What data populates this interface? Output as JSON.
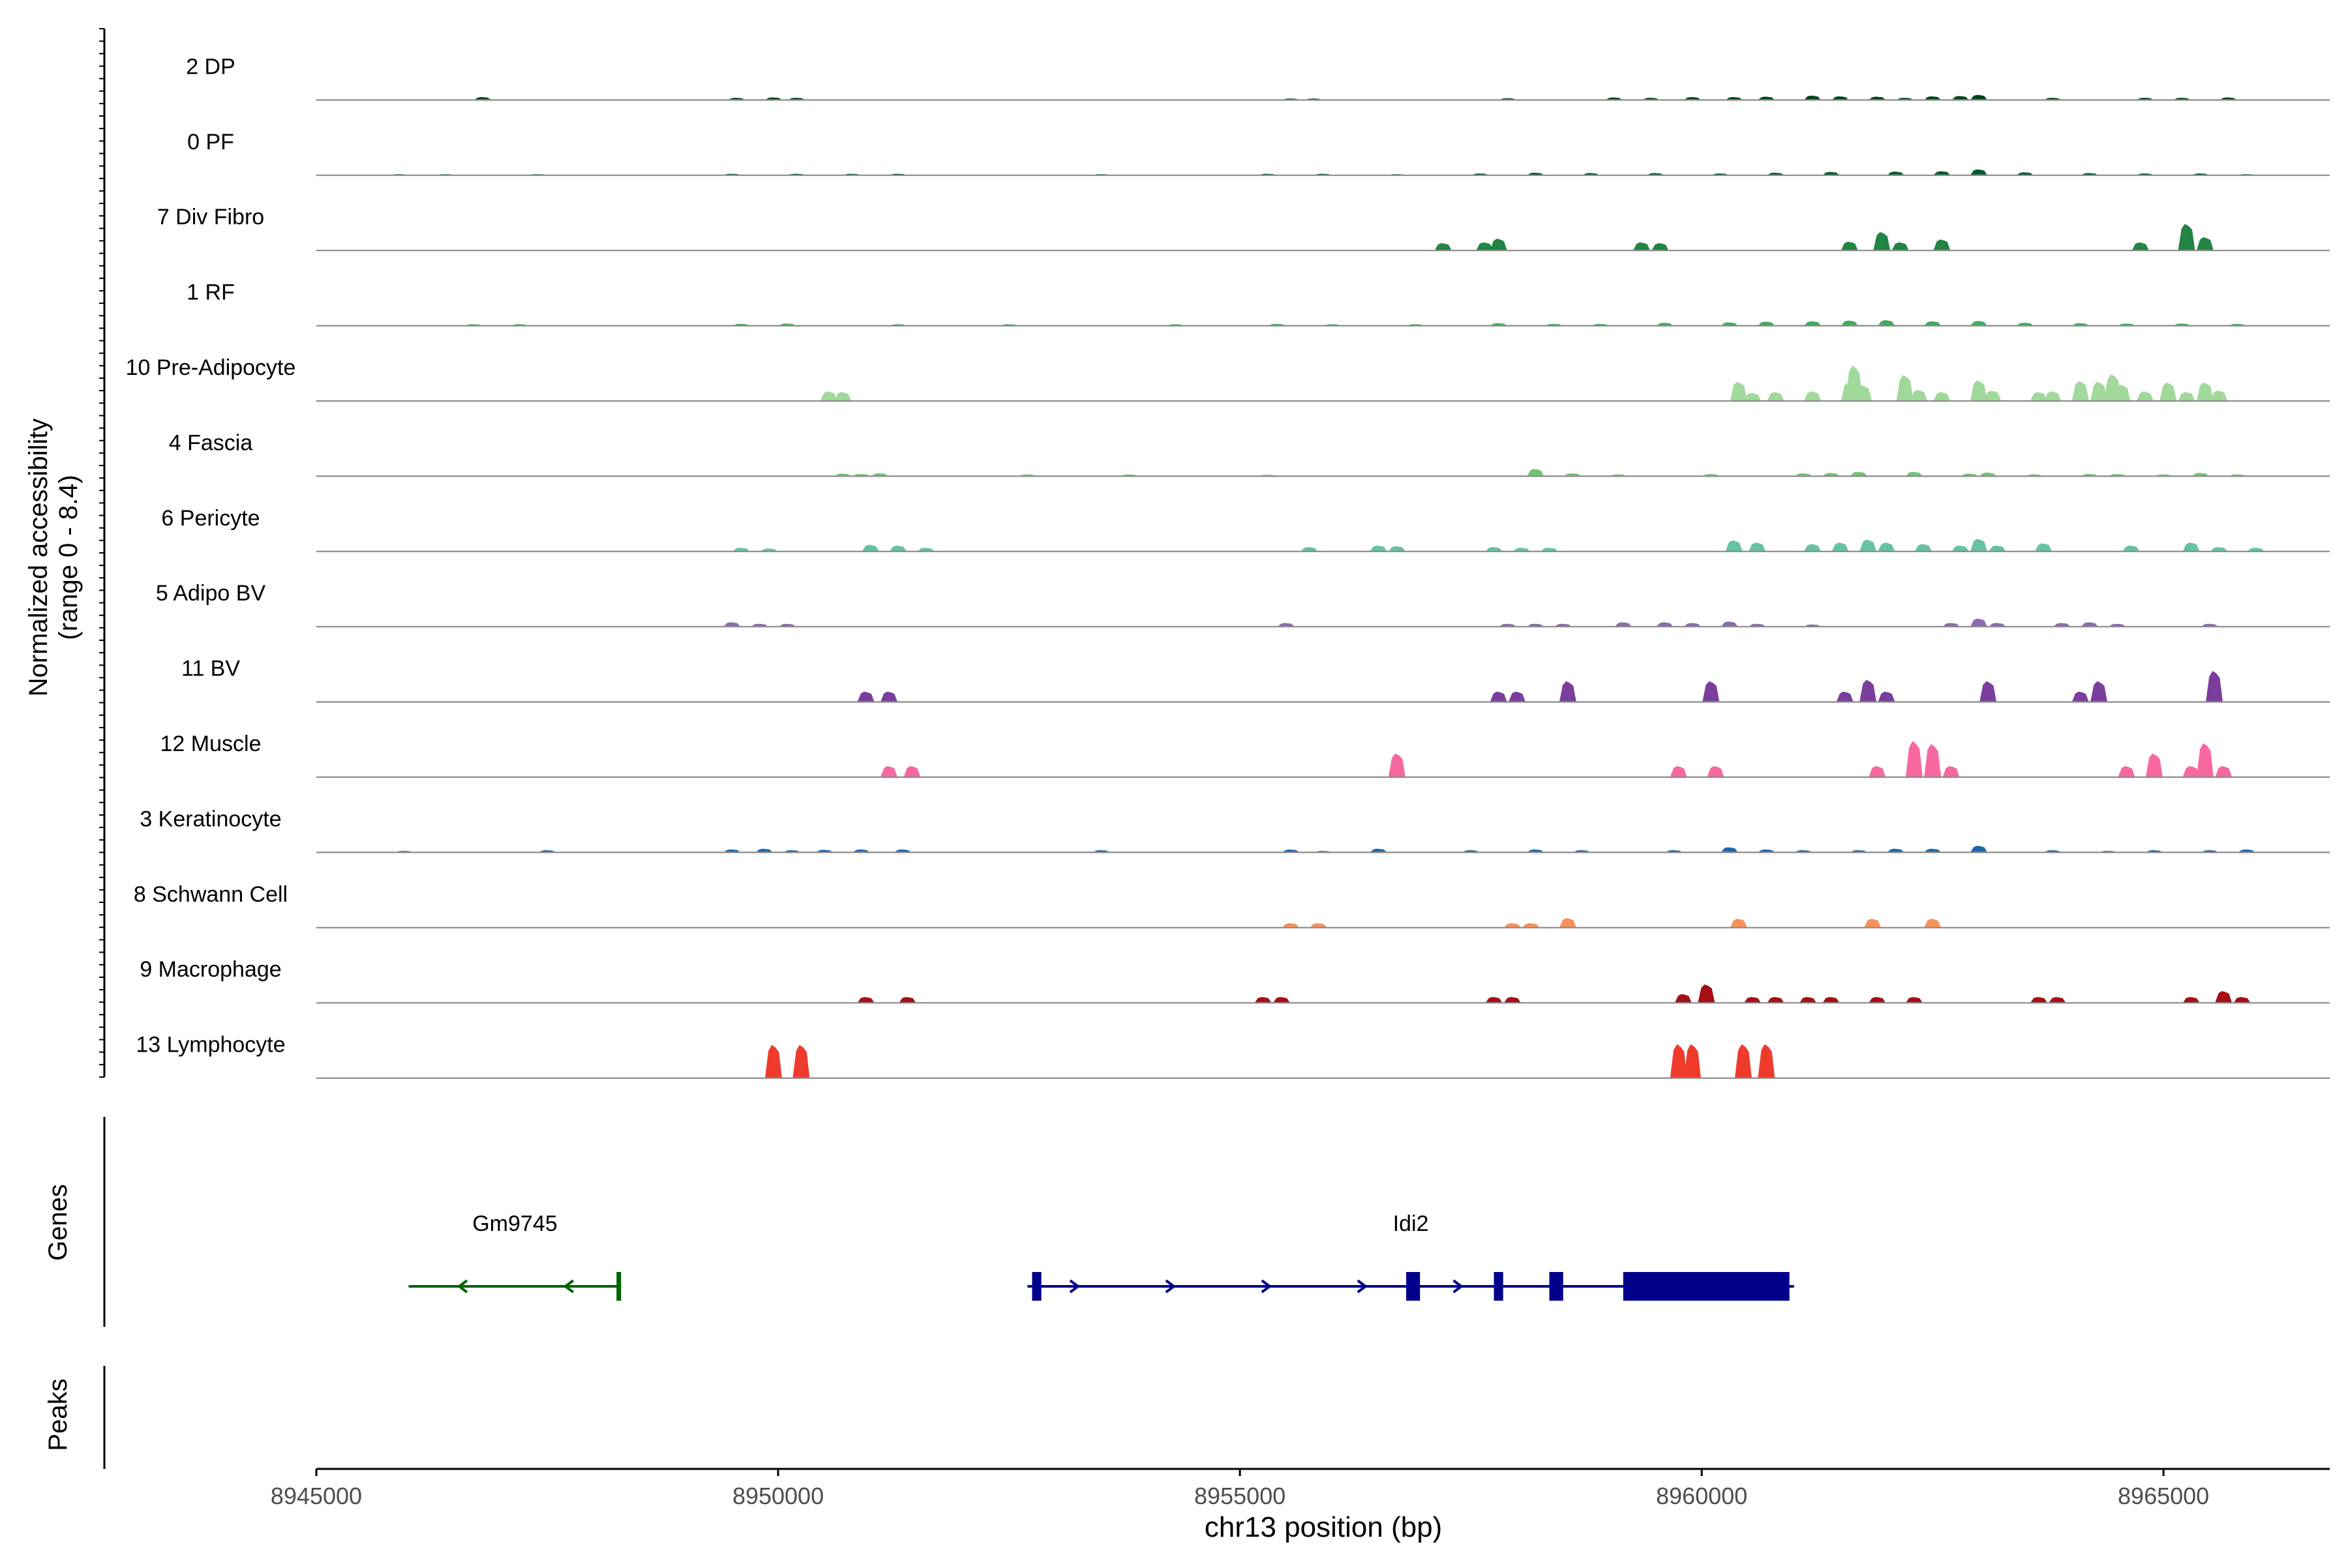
{
  "chart_data": {
    "type": "area",
    "title": "",
    "region": {
      "chrom": "chr13",
      "start": 8945000,
      "end": 8966800
    },
    "xlabel": "chr13 position (bp)",
    "x_ticks": [
      8945000,
      8950000,
      8955000,
      8960000,
      8965000
    ],
    "x_tick_labels": [
      "8945000",
      "8950000",
      "8955000",
      "8960000",
      "8965000"
    ],
    "ylabel_line1": "Normalized accessibility",
    "ylabel_line2": "(range 0 - 8.4)",
    "ylim": [
      0,
      8.4
    ],
    "gene_panel_label": "Genes",
    "peak_panel_label": "Peaks",
    "tracks": [
      {
        "name": "2 DP",
        "color": "#00441b",
        "peaks": [
          [
            8946800,
            0.4
          ],
          [
            8949550,
            0.3
          ],
          [
            8949950,
            0.35
          ],
          [
            8950200,
            0.3
          ],
          [
            8955550,
            0.2
          ],
          [
            8955800,
            0.2
          ],
          [
            8957900,
            0.25
          ],
          [
            8959050,
            0.35
          ],
          [
            8959450,
            0.3
          ],
          [
            8959900,
            0.4
          ],
          [
            8960350,
            0.4
          ],
          [
            8960700,
            0.45
          ],
          [
            8961200,
            0.6
          ],
          [
            8961500,
            0.5
          ],
          [
            8961900,
            0.45
          ],
          [
            8962200,
            0.3
          ],
          [
            8962500,
            0.5
          ],
          [
            8962800,
            0.55
          ],
          [
            8963000,
            0.7
          ],
          [
            8963800,
            0.3
          ],
          [
            8964800,
            0.3
          ],
          [
            8965200,
            0.3
          ],
          [
            8965700,
            0.35
          ]
        ]
      },
      {
        "name": "0 PF",
        "color": "#005a32",
        "peaks": [
          [
            8945900,
            0.15
          ],
          [
            8946400,
            0.15
          ],
          [
            8947400,
            0.15
          ],
          [
            8949500,
            0.2
          ],
          [
            8950200,
            0.2
          ],
          [
            8950800,
            0.2
          ],
          [
            8951300,
            0.2
          ],
          [
            8953500,
            0.15
          ],
          [
            8955300,
            0.2
          ],
          [
            8955900,
            0.2
          ],
          [
            8956700,
            0.15
          ],
          [
            8957600,
            0.25
          ],
          [
            8958200,
            0.35
          ],
          [
            8958800,
            0.3
          ],
          [
            8959500,
            0.3
          ],
          [
            8960200,
            0.25
          ],
          [
            8960800,
            0.35
          ],
          [
            8961400,
            0.45
          ],
          [
            8962100,
            0.5
          ],
          [
            8962600,
            0.55
          ],
          [
            8963000,
            0.8
          ],
          [
            8963500,
            0.4
          ],
          [
            8964200,
            0.3
          ],
          [
            8964800,
            0.25
          ],
          [
            8965400,
            0.25
          ],
          [
            8965900,
            0.15
          ]
        ]
      },
      {
        "name": "7 Div Fibro",
        "color": "#238443",
        "peaks": [
          [
            8957200,
            1.0
          ],
          [
            8957650,
            1.1
          ],
          [
            8957800,
            1.6
          ],
          [
            8959350,
            1.1
          ],
          [
            8959550,
            1.0
          ],
          [
            8961600,
            1.2
          ],
          [
            8961950,
            2.5
          ],
          [
            8962150,
            1.1
          ],
          [
            8962600,
            1.5
          ],
          [
            8964750,
            1.1
          ],
          [
            8965250,
            3.6
          ],
          [
            8965450,
            1.8
          ]
        ]
      },
      {
        "name": "1 RF",
        "color": "#41ab5d",
        "peaks": [
          [
            8946700,
            0.2
          ],
          [
            8947200,
            0.2
          ],
          [
            8949600,
            0.25
          ],
          [
            8950100,
            0.3
          ],
          [
            8951300,
            0.2
          ],
          [
            8952500,
            0.2
          ],
          [
            8954300,
            0.2
          ],
          [
            8955400,
            0.25
          ],
          [
            8956000,
            0.2
          ],
          [
            8956900,
            0.2
          ],
          [
            8957800,
            0.35
          ],
          [
            8958400,
            0.25
          ],
          [
            8958900,
            0.25
          ],
          [
            8959600,
            0.4
          ],
          [
            8960300,
            0.45
          ],
          [
            8960700,
            0.55
          ],
          [
            8961200,
            0.6
          ],
          [
            8961600,
            0.7
          ],
          [
            8962000,
            0.75
          ],
          [
            8962500,
            0.6
          ],
          [
            8963000,
            0.65
          ],
          [
            8963500,
            0.4
          ],
          [
            8964100,
            0.35
          ],
          [
            8964600,
            0.3
          ],
          [
            8965200,
            0.3
          ],
          [
            8965800,
            0.25
          ]
        ]
      },
      {
        "name": "10 Pre-Adipocyte",
        "color": "#a1d99b",
        "peaks": [
          [
            8950550,
            1.3
          ],
          [
            8950700,
            1.2
          ],
          [
            8960400,
            2.6
          ],
          [
            8960550,
            1.1
          ],
          [
            8960800,
            1.2
          ],
          [
            8961200,
            1.3
          ],
          [
            8961600,
            2.5
          ],
          [
            8961650,
            4.8
          ],
          [
            8961750,
            2.1
          ],
          [
            8962200,
            3.5
          ],
          [
            8962350,
            1.5
          ],
          [
            8962600,
            1.2
          ],
          [
            8963000,
            2.8
          ],
          [
            8963150,
            1.4
          ],
          [
            8963650,
            1.2
          ],
          [
            8963800,
            1.3
          ],
          [
            8964100,
            2.7
          ],
          [
            8964300,
            2.6
          ],
          [
            8964450,
            3.6
          ],
          [
            8964550,
            2.2
          ],
          [
            8964800,
            1.3
          ],
          [
            8965050,
            2.5
          ],
          [
            8965250,
            1.2
          ],
          [
            8965450,
            2.5
          ],
          [
            8965600,
            1.4
          ]
        ]
      },
      {
        "name": "4 Fascia",
        "color": "#74c476",
        "peaks": [
          [
            8950700,
            0.35
          ],
          [
            8950900,
            0.3
          ],
          [
            8951100,
            0.4
          ],
          [
            8952700,
            0.25
          ],
          [
            8953800,
            0.25
          ],
          [
            8955300,
            0.2
          ],
          [
            8958200,
            1.0
          ],
          [
            8958600,
            0.4
          ],
          [
            8959100,
            0.25
          ],
          [
            8960100,
            0.3
          ],
          [
            8961100,
            0.4
          ],
          [
            8961400,
            0.45
          ],
          [
            8961700,
            0.6
          ],
          [
            8962300,
            0.6
          ],
          [
            8962900,
            0.35
          ],
          [
            8963100,
            0.5
          ],
          [
            8963600,
            0.25
          ],
          [
            8964200,
            0.3
          ],
          [
            8964500,
            0.3
          ],
          [
            8965000,
            0.25
          ],
          [
            8965400,
            0.45
          ],
          [
            8965800,
            0.25
          ]
        ]
      },
      {
        "name": "6 Pericyte",
        "color": "#66c2a4",
        "peaks": [
          [
            8949600,
            0.5
          ],
          [
            8949900,
            0.4
          ],
          [
            8951000,
            0.9
          ],
          [
            8951300,
            0.8
          ],
          [
            8951600,
            0.5
          ],
          [
            8955750,
            0.6
          ],
          [
            8956500,
            0.8
          ],
          [
            8956700,
            0.7
          ],
          [
            8957750,
            0.6
          ],
          [
            8958050,
            0.5
          ],
          [
            8958350,
            0.5
          ],
          [
            8960350,
            1.5
          ],
          [
            8960600,
            1.2
          ],
          [
            8961200,
            1.0
          ],
          [
            8961500,
            1.2
          ],
          [
            8961800,
            1.6
          ],
          [
            8962000,
            1.2
          ],
          [
            8962400,
            1.0
          ],
          [
            8962800,
            0.8
          ],
          [
            8963000,
            1.7
          ],
          [
            8963200,
            0.8
          ],
          [
            8963700,
            1.1
          ],
          [
            8964650,
            0.8
          ],
          [
            8965300,
            1.2
          ],
          [
            8965600,
            0.6
          ],
          [
            8966000,
            0.5
          ]
        ]
      },
      {
        "name": "5 Adipo BV",
        "color": "#8c6bb1",
        "peaks": [
          [
            8949500,
            0.6
          ],
          [
            8949800,
            0.4
          ],
          [
            8950100,
            0.4
          ],
          [
            8955500,
            0.5
          ],
          [
            8957900,
            0.4
          ],
          [
            8958200,
            0.4
          ],
          [
            8958500,
            0.4
          ],
          [
            8959150,
            0.6
          ],
          [
            8959600,
            0.6
          ],
          [
            8959900,
            0.5
          ],
          [
            8960300,
            0.7
          ],
          [
            8960600,
            0.4
          ],
          [
            8961200,
            0.3
          ],
          [
            8962700,
            0.5
          ],
          [
            8963000,
            1.1
          ],
          [
            8963200,
            0.5
          ],
          [
            8963900,
            0.5
          ],
          [
            8964200,
            0.6
          ],
          [
            8964500,
            0.4
          ],
          [
            8965500,
            0.4
          ]
        ]
      },
      {
        "name": "11 BV",
        "color": "#7a3e9d",
        "peaks": [
          [
            8950950,
            1.4
          ],
          [
            8951200,
            1.4
          ],
          [
            8957800,
            1.4
          ],
          [
            8958000,
            1.4
          ],
          [
            8958550,
            2.8
          ],
          [
            8960100,
            2.8
          ],
          [
            8961550,
            1.4
          ],
          [
            8961800,
            3.0
          ],
          [
            8962000,
            1.4
          ],
          [
            8963100,
            2.8
          ],
          [
            8964100,
            1.4
          ],
          [
            8964300,
            2.8
          ],
          [
            8965550,
            4.2
          ]
        ]
      },
      {
        "name": "12 Muscle",
        "color": "#f768a1",
        "peaks": [
          [
            8951200,
            1.5
          ],
          [
            8951450,
            1.5
          ],
          [
            8956700,
            3.2
          ],
          [
            8959750,
            1.5
          ],
          [
            8960150,
            1.5
          ],
          [
            8961900,
            1.5
          ],
          [
            8962300,
            4.9
          ],
          [
            8962500,
            4.5
          ],
          [
            8962700,
            1.5
          ],
          [
            8964600,
            1.5
          ],
          [
            8964900,
            3.2
          ],
          [
            8965300,
            1.5
          ],
          [
            8965450,
            4.6
          ],
          [
            8965650,
            1.5
          ]
        ]
      },
      {
        "name": "3 Keratinocyte",
        "color": "#2166ac",
        "peaks": [
          [
            8945950,
            0.2
          ],
          [
            8947500,
            0.3
          ],
          [
            8949500,
            0.4
          ],
          [
            8949850,
            0.5
          ],
          [
            8950150,
            0.3
          ],
          [
            8950500,
            0.35
          ],
          [
            8950900,
            0.4
          ],
          [
            8951350,
            0.4
          ],
          [
            8953500,
            0.3
          ],
          [
            8955550,
            0.4
          ],
          [
            8955900,
            0.2
          ],
          [
            8956500,
            0.5
          ],
          [
            8957500,
            0.3
          ],
          [
            8958200,
            0.4
          ],
          [
            8958700,
            0.3
          ],
          [
            8959700,
            0.3
          ],
          [
            8960300,
            0.7
          ],
          [
            8960700,
            0.4
          ],
          [
            8961100,
            0.3
          ],
          [
            8961700,
            0.3
          ],
          [
            8962100,
            0.5
          ],
          [
            8962500,
            0.5
          ],
          [
            8963000,
            0.9
          ],
          [
            8963800,
            0.3
          ],
          [
            8964400,
            0.2
          ],
          [
            8964900,
            0.3
          ],
          [
            8965500,
            0.3
          ],
          [
            8965900,
            0.4
          ]
        ]
      },
      {
        "name": "8 Schwann Cell",
        "color": "#f4915d",
        "peaks": [
          [
            8955550,
            0.6
          ],
          [
            8955850,
            0.6
          ],
          [
            8957950,
            0.6
          ],
          [
            8958150,
            0.6
          ],
          [
            8958550,
            1.3
          ],
          [
            8960400,
            1.2
          ],
          [
            8961850,
            1.2
          ],
          [
            8962500,
            1.2
          ]
        ]
      },
      {
        "name": "9 Macrophage",
        "color": "#a50f15",
        "peaks": [
          [
            8950950,
            0.8
          ],
          [
            8951400,
            0.8
          ],
          [
            8955250,
            0.8
          ],
          [
            8955450,
            0.8
          ],
          [
            8957750,
            0.8
          ],
          [
            8957950,
            0.8
          ],
          [
            8959800,
            1.2
          ],
          [
            8960050,
            2.5
          ],
          [
            8960550,
            0.8
          ],
          [
            8960800,
            0.8
          ],
          [
            8961150,
            0.8
          ],
          [
            8961400,
            0.8
          ],
          [
            8961900,
            0.8
          ],
          [
            8962300,
            0.8
          ],
          [
            8963650,
            0.8
          ],
          [
            8963850,
            0.8
          ],
          [
            8965300,
            0.8
          ],
          [
            8965650,
            1.6
          ],
          [
            8965850,
            0.8
          ]
        ]
      },
      {
        "name": "13 Lymphocyte",
        "color": "#ef3b2c",
        "peaks": [
          [
            8949950,
            4.5
          ],
          [
            8950250,
            4.5
          ],
          [
            8959750,
            4.6
          ],
          [
            8959900,
            4.6
          ],
          [
            8960450,
            4.6
          ],
          [
            8960700,
            4.6
          ]
        ]
      }
    ],
    "genes": [
      {
        "name": "Gm9745",
        "color": "#006400",
        "strand": "-",
        "start": 8946000,
        "end": 8948300,
        "exons": [
          [
            8948250,
            8948300
          ]
        ]
      },
      {
        "name": "Idi2",
        "color": "#00008b",
        "strand": "+",
        "start": 8952700,
        "end": 8961000,
        "exons": [
          [
            8952750,
            8952850
          ],
          [
            8956800,
            8956950
          ],
          [
            8957750,
            8957850
          ],
          [
            8958350,
            8958500
          ],
          [
            8959150,
            8960950
          ]
        ]
      }
    ]
  }
}
